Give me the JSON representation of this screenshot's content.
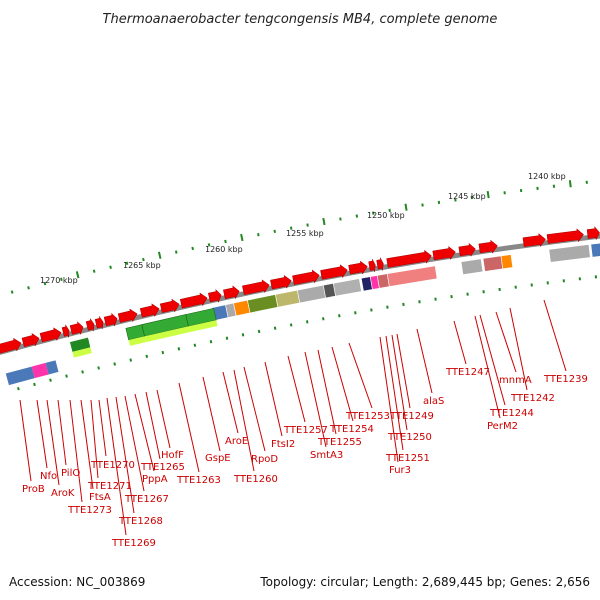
{
  "title": "Thermoanaerobacter tengcongensis MB4, complete genome",
  "footer": {
    "accession": "Accession: NC_003869",
    "summary": "Topology: circular; Length: 2,689,445 bp; Genes: 2,656"
  },
  "colors": {
    "forward_strand": "#ee0000",
    "backbone": "#888888",
    "tick": "#228822",
    "label": "#cc0000",
    "leader": "#cc0000"
  },
  "scale_labels": [
    {
      "text": "1270 kbp"
    },
    {
      "text": "1265 kbp"
    },
    {
      "text": "1260 kbp"
    },
    {
      "text": "1255 kbp"
    },
    {
      "text": "1250 kbp"
    },
    {
      "text": "1245 kbp"
    },
    {
      "text": "1240 kbp"
    }
  ],
  "gene_labels": [
    {
      "text": "ProB"
    },
    {
      "text": "Nfo"
    },
    {
      "text": "AroK"
    },
    {
      "text": "PilO"
    },
    {
      "text": "TTE1273"
    },
    {
      "text": "FtsA"
    },
    {
      "text": "TTE1271"
    },
    {
      "text": "TTE1270"
    },
    {
      "text": "TTE1269"
    },
    {
      "text": "TTE1268"
    },
    {
      "text": "TTE1267"
    },
    {
      "text": "PppA"
    },
    {
      "text": "TTE1265"
    },
    {
      "text": "HofF"
    },
    {
      "text": "TTE1263"
    },
    {
      "text": "GspE"
    },
    {
      "text": "AroE"
    },
    {
      "text": "TTE1260"
    },
    {
      "text": "RpoD"
    },
    {
      "text": "FtsI2"
    },
    {
      "text": "TTE1257"
    },
    {
      "text": "SmtA3"
    },
    {
      "text": "TTE1255"
    },
    {
      "text": "TTE1254"
    },
    {
      "text": "TTE1253"
    },
    {
      "text": "Fur3"
    },
    {
      "text": "TTE1251"
    },
    {
      "text": "TTE1250"
    },
    {
      "text": "TTE1249"
    },
    {
      "text": "alaS"
    },
    {
      "text": "TTE1247"
    },
    {
      "text": "PerM2"
    },
    {
      "text": "TTE1244"
    },
    {
      "text": "mnmA"
    },
    {
      "text": "TTE1242"
    },
    {
      "text": "TTE1239"
    }
  ]
}
